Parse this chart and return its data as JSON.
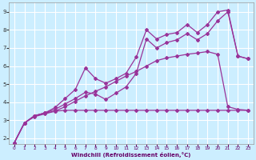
{
  "xlabel": "Windchill (Refroidissement éolien,°C)",
  "bg_color": "#cceeff",
  "grid_color": "#ffffff",
  "line_color": "#993399",
  "xlim": [
    -0.5,
    23.5
  ],
  "ylim": [
    1.7,
    9.5
  ],
  "yticks": [
    2,
    3,
    4,
    5,
    6,
    7,
    8,
    9
  ],
  "xticks": [
    0,
    1,
    2,
    3,
    4,
    5,
    6,
    7,
    8,
    9,
    10,
    11,
    12,
    13,
    14,
    15,
    16,
    17,
    18,
    19,
    20,
    21,
    22,
    23
  ],
  "series1_x": [
    0,
    1,
    2,
    3,
    4,
    5,
    6,
    7,
    8,
    9,
    10,
    11,
    12,
    13,
    14,
    15,
    16,
    17,
    18,
    19,
    20,
    21,
    22,
    23
  ],
  "series1_y": [
    1.75,
    2.85,
    3.25,
    3.4,
    3.5,
    3.55,
    3.55,
    3.55,
    3.55,
    3.55,
    3.55,
    3.55,
    3.55,
    3.55,
    3.55,
    3.55,
    3.55,
    3.55,
    3.55,
    3.55,
    3.55,
    3.55,
    3.55,
    3.55
  ],
  "series2_x": [
    0,
    1,
    2,
    3,
    4,
    5,
    6,
    7,
    8,
    9,
    10,
    11,
    12,
    13,
    14,
    15,
    16,
    17,
    18,
    19,
    20,
    21,
    22,
    23
  ],
  "series2_y": [
    1.75,
    2.85,
    3.25,
    3.4,
    3.7,
    4.2,
    4.7,
    5.9,
    5.3,
    5.05,
    5.3,
    5.6,
    6.5,
    8.0,
    7.5,
    7.75,
    7.85,
    8.3,
    7.85,
    8.3,
    9.0,
    9.1,
    6.55,
    6.4
  ],
  "series3_x": [
    0,
    1,
    2,
    3,
    4,
    5,
    6,
    7,
    8,
    9,
    10,
    11,
    12,
    13,
    14,
    15,
    16,
    17,
    18,
    19,
    20,
    21,
    22,
    23
  ],
  "series3_y": [
    1.75,
    2.85,
    3.25,
    3.4,
    3.6,
    3.9,
    4.2,
    4.55,
    4.45,
    4.15,
    4.5,
    4.85,
    5.6,
    7.5,
    7.0,
    7.3,
    7.45,
    7.8,
    7.45,
    7.8,
    8.5,
    9.0,
    6.55,
    6.4
  ],
  "series4_x": [
    0,
    1,
    2,
    3,
    4,
    5,
    6,
    7,
    8,
    9,
    10,
    11,
    12,
    13,
    14,
    15,
    16,
    17,
    18,
    19,
    20,
    21,
    22,
    23
  ],
  "series4_y": [
    1.75,
    2.85,
    3.2,
    3.35,
    3.5,
    3.75,
    4.05,
    4.35,
    4.6,
    4.85,
    5.15,
    5.45,
    5.7,
    6.0,
    6.3,
    6.45,
    6.55,
    6.65,
    6.72,
    6.8,
    6.65,
    3.75,
    3.6,
    3.55
  ]
}
